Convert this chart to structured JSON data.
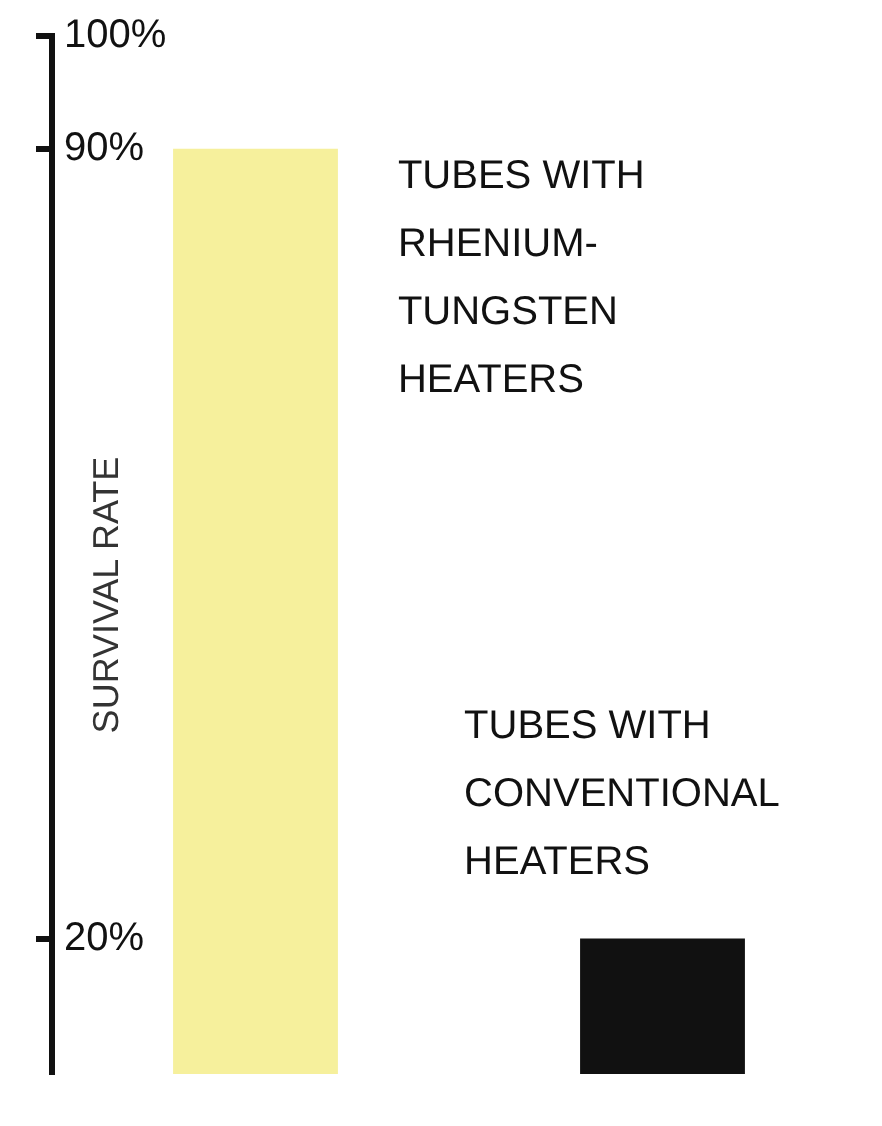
{
  "chart_data": {
    "type": "bar",
    "ylabel": "SURVIVAL RATE",
    "categories": [
      null,
      null
    ],
    "annotations": [
      "TUBES WITH RHENIUM-TUNGSTEN HEATERS",
      "TUBES WITH CONVENTIONAL HEATERS"
    ],
    "values": [
      90,
      20
    ],
    "colors": [
      "#f6f09c",
      "#111111"
    ],
    "ylim": [
      8,
      100
    ],
    "yticks": [
      {
        "value": 20,
        "label": "20%"
      },
      {
        "value": 90,
        "label": "90%"
      },
      {
        "value": 100,
        "label": "100%"
      }
    ],
    "grid": false,
    "legend": false
  }
}
